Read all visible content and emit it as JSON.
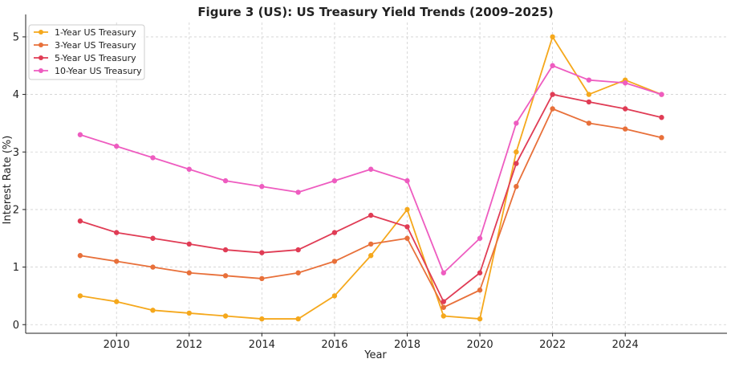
{
  "chart_data": {
    "type": "line",
    "title": "Figure 3 (US): US Treasury Yield Trends (2009–2025)",
    "xlabel": "Year",
    "ylabel": "Interest Rate (%)",
    "x": [
      2009,
      2010,
      2011,
      2012,
      2013,
      2014,
      2015,
      2016,
      2017,
      2018,
      2019,
      2020,
      2021,
      2022,
      2023,
      2024,
      2025
    ],
    "xlim": [
      2007.5,
      2026.8
    ],
    "ylim": [
      -0.15,
      5.25
    ],
    "xticks": [
      2010,
      2012,
      2014,
      2016,
      2018,
      2020,
      2022,
      2024
    ],
    "yticks": [
      0,
      1,
      2,
      3,
      4,
      5
    ],
    "grid": true,
    "legend_position": "top-left",
    "series": [
      {
        "name": "1-Year US Treasury",
        "color": "#f5a81c",
        "values": [
          0.5,
          0.4,
          0.25,
          0.2,
          0.15,
          0.1,
          0.1,
          0.5,
          1.2,
          2.0,
          0.15,
          0.1,
          3.0,
          5.0,
          4.0,
          4.25,
          4.0
        ]
      },
      {
        "name": "3-Year US Treasury",
        "color": "#e8703a",
        "values": [
          1.2,
          1.1,
          1.0,
          0.9,
          0.85,
          0.8,
          0.9,
          1.1,
          1.4,
          1.5,
          0.3,
          0.6,
          2.4,
          3.75,
          3.5,
          3.4,
          3.25
        ]
      },
      {
        "name": "5-Year US Treasury",
        "color": "#e03c55",
        "values": [
          1.8,
          1.6,
          1.5,
          1.4,
          1.3,
          1.25,
          1.3,
          1.6,
          1.9,
          1.7,
          0.4,
          0.9,
          2.8,
          4.0,
          3.87,
          3.75,
          3.6
        ]
      },
      {
        "name": "10-Year US Treasury",
        "color": "#ee5cc0",
        "values": [
          3.3,
          3.1,
          2.9,
          2.7,
          2.5,
          2.4,
          2.3,
          2.5,
          2.7,
          2.5,
          0.9,
          1.5,
          3.5,
          4.5,
          4.25,
          4.2,
          4.0
        ]
      }
    ]
  }
}
